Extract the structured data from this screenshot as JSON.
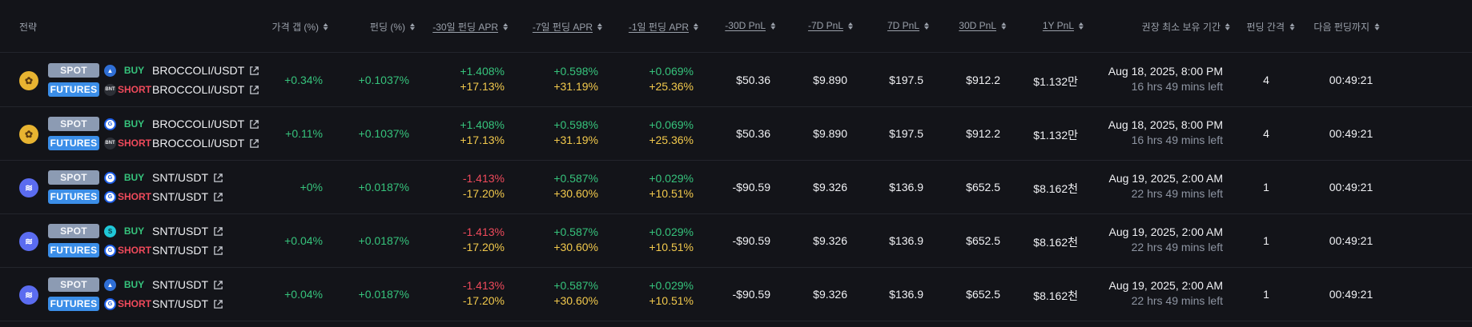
{
  "headers": {
    "strategy": "전략",
    "price_gap": "가격 갭 (%)",
    "funding": "펀딩 (%)",
    "apr30": "-30일 펀딩 APR",
    "apr7": "-7일 펀딩 APR",
    "apr1": "-1일 펀딩 APR",
    "pnl30m": "-30D PnL",
    "pnl7m": "-7D PnL",
    "pnl7": "7D PnL",
    "pnl30": "30D PnL",
    "pnl1y": "1Y PnL",
    "hold": "권장 최소 보유 기간",
    "interval": "펀딩 간격",
    "next": "다음 펀딩까지"
  },
  "rows": [
    {
      "coin_icon": "broccoli-coin-icon",
      "leg1": {
        "badge": "SPOT",
        "exchange_icon": "upbit-exchange-icon",
        "exchange_glyph": "▲",
        "side": "BUY",
        "pair": "BROCCOLI/USDT"
      },
      "leg2": {
        "badge": "FUTURES",
        "exchange_icon": "binance-exchange-icon",
        "exchange_glyph": "BNT",
        "side": "SHORT",
        "pair": "BROCCOLI/USDT"
      },
      "price_gap": "+0.34%",
      "funding": "+0.1037%",
      "apr30_a": "+1.408%",
      "apr30_b": "+17.13%",
      "apr7_a": "+0.598%",
      "apr7_b": "+31.19%",
      "apr1_a": "+0.069%",
      "apr1_b": "+25.36%",
      "pnl30m": "$50.36",
      "pnl7m": "$9.890",
      "pnl7": "$197.5",
      "pnl30": "$912.2",
      "pnl1y": "$1.132만",
      "hold_date": "Aug 18, 2025, 8:00 PM",
      "hold_left": "16 hrs 49 mins left",
      "interval": "4",
      "next": "00:49:21",
      "apr30_a_sign": "pos"
    },
    {
      "coin_icon": "broccoli-coin-icon",
      "leg1": {
        "badge": "SPOT",
        "exchange_icon": "gate-exchange-icon",
        "exchange_glyph": "G",
        "side": "BUY",
        "pair": "BROCCOLI/USDT"
      },
      "leg2": {
        "badge": "FUTURES",
        "exchange_icon": "binance-exchange-icon",
        "exchange_glyph": "BNT",
        "side": "SHORT",
        "pair": "BROCCOLI/USDT"
      },
      "price_gap": "+0.11%",
      "funding": "+0.1037%",
      "apr30_a": "+1.408%",
      "apr30_b": "+17.13%",
      "apr7_a": "+0.598%",
      "apr7_b": "+31.19%",
      "apr1_a": "+0.069%",
      "apr1_b": "+25.36%",
      "pnl30m": "$50.36",
      "pnl7m": "$9.890",
      "pnl7": "$197.5",
      "pnl30": "$912.2",
      "pnl1y": "$1.132만",
      "hold_date": "Aug 18, 2025, 8:00 PM",
      "hold_left": "16 hrs 49 mins left",
      "interval": "4",
      "next": "00:49:21",
      "apr30_a_sign": "pos"
    },
    {
      "coin_icon": "snt-coin-icon",
      "leg1": {
        "badge": "SPOT",
        "exchange_icon": "gate-exchange-icon",
        "exchange_glyph": "G",
        "side": "BUY",
        "pair": "SNT/USDT"
      },
      "leg2": {
        "badge": "FUTURES",
        "exchange_icon": "gate-exchange-icon",
        "exchange_glyph": "G",
        "side": "SHORT",
        "pair": "SNT/USDT"
      },
      "price_gap": "+0%",
      "funding": "+0.0187%",
      "apr30_a": "-1.413%",
      "apr30_b": "-17.20%",
      "apr7_a": "+0.587%",
      "apr7_b": "+30.60%",
      "apr1_a": "+0.029%",
      "apr1_b": "+10.51%",
      "pnl30m": "-$90.59",
      "pnl7m": "$9.326",
      "pnl7": "$136.9",
      "pnl30": "$652.5",
      "pnl1y": "$8.162천",
      "hold_date": "Aug 19, 2025, 2:00 AM",
      "hold_left": "22 hrs 49 mins left",
      "interval": "1",
      "next": "00:49:21",
      "apr30_a_sign": "neg"
    },
    {
      "coin_icon": "snt-coin-icon",
      "leg1": {
        "badge": "SPOT",
        "exchange_icon": "mexc-exchange-icon",
        "exchange_glyph": "S",
        "side": "BUY",
        "pair": "SNT/USDT"
      },
      "leg2": {
        "badge": "FUTURES",
        "exchange_icon": "gate-exchange-icon",
        "exchange_glyph": "G",
        "side": "SHORT",
        "pair": "SNT/USDT"
      },
      "price_gap": "+0.04%",
      "funding": "+0.0187%",
      "apr30_a": "-1.413%",
      "apr30_b": "-17.20%",
      "apr7_a": "+0.587%",
      "apr7_b": "+30.60%",
      "apr1_a": "+0.029%",
      "apr1_b": "+10.51%",
      "pnl30m": "-$90.59",
      "pnl7m": "$9.326",
      "pnl7": "$136.9",
      "pnl30": "$652.5",
      "pnl1y": "$8.162천",
      "hold_date": "Aug 19, 2025, 2:00 AM",
      "hold_left": "22 hrs 49 mins left",
      "interval": "1",
      "next": "00:49:21",
      "apr30_a_sign": "neg"
    },
    {
      "coin_icon": "snt-coin-icon",
      "leg1": {
        "badge": "SPOT",
        "exchange_icon": "upbit-exchange-icon",
        "exchange_glyph": "▲",
        "side": "BUY",
        "pair": "SNT/USDT"
      },
      "leg2": {
        "badge": "FUTURES",
        "exchange_icon": "gate-exchange-icon",
        "exchange_glyph": "G",
        "side": "SHORT",
        "pair": "SNT/USDT"
      },
      "price_gap": "+0.04%",
      "funding": "+0.0187%",
      "apr30_a": "-1.413%",
      "apr30_b": "-17.20%",
      "apr7_a": "+0.587%",
      "apr7_b": "+30.60%",
      "apr1_a": "+0.029%",
      "apr1_b": "+10.51%",
      "pnl30m": "-$90.59",
      "pnl7m": "$9.326",
      "pnl7": "$136.9",
      "pnl30": "$652.5",
      "pnl1y": "$8.162천",
      "hold_date": "Aug 19, 2025, 2:00 AM",
      "hold_left": "22 hrs 49 mins left",
      "interval": "1",
      "next": "00:49:21",
      "apr30_a_sign": "neg"
    }
  ],
  "colors": {
    "positive": "#36c37c",
    "negative": "#ef4a5b",
    "apr_secondary": "#f2c94c",
    "spot_badge": "#8c9bb3",
    "futures_badge": "#3b8ee8"
  }
}
